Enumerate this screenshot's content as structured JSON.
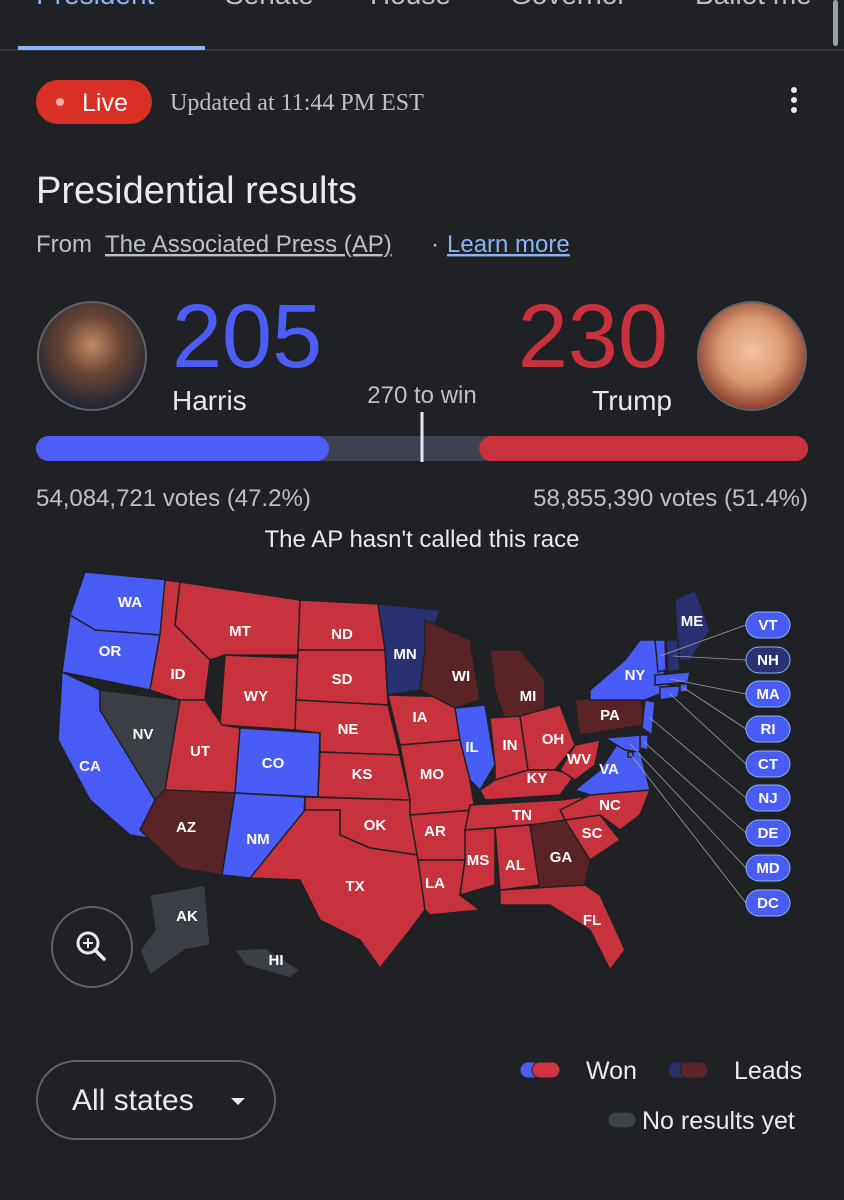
{
  "tabs": [
    "President",
    "Senate",
    "House",
    "Governor",
    "Ballot me"
  ],
  "status": {
    "live": "Live",
    "updated": "Updated at 11:44 PM EST"
  },
  "title": "Presidential results",
  "source": {
    "prefix": "From",
    "name": "The Associated Press (AP)",
    "separator": "·",
    "link": "Learn more"
  },
  "candidates": [
    {
      "name": "Harris",
      "electoral_votes": 205,
      "votes": "54,084,721 votes (47.2%)",
      "color": "#4c5ef7"
    },
    {
      "name": "Trump",
      "electoral_votes": 230,
      "votes": "58,855,390 votes (51.4%)",
      "color": "#c9323d"
    }
  ],
  "win_threshold": 270,
  "win_label": "270 to win",
  "race_status": "The AP hasn't called this race",
  "map": {
    "states": [
      {
        "label": "WA",
        "color": "#4a5cf6"
      },
      {
        "label": "OR",
        "color": "#4a5cf6"
      },
      {
        "label": "CA",
        "color": "#4a5cf6"
      },
      {
        "label": "NV",
        "color": "#3b3f45"
      },
      {
        "label": "ID",
        "color": "#c8323c"
      },
      {
        "label": "MT",
        "color": "#c8323c"
      },
      {
        "label": "WY",
        "color": "#c8323c"
      },
      {
        "label": "UT",
        "color": "#c8323c"
      },
      {
        "label": "CO",
        "color": "#4a5cf6"
      },
      {
        "label": "AZ",
        "color": "#5a2427"
      },
      {
        "label": "NM",
        "color": "#4a5cf6"
      },
      {
        "label": "ND",
        "color": "#c8323c"
      },
      {
        "label": "SD",
        "color": "#c8323c"
      },
      {
        "label": "NE",
        "color": "#c8323c"
      },
      {
        "label": "KS",
        "color": "#c8323c"
      },
      {
        "label": "OK",
        "color": "#c8323c"
      },
      {
        "label": "TX",
        "color": "#c8323c"
      },
      {
        "label": "MN",
        "color": "#2a3172"
      },
      {
        "label": "IA",
        "color": "#c8323c"
      },
      {
        "label": "MO",
        "color": "#c8323c"
      },
      {
        "label": "AR",
        "color": "#c8323c"
      },
      {
        "label": "LA",
        "color": "#c8323c"
      },
      {
        "label": "WI",
        "color": "#5a2427"
      },
      {
        "label": "IL",
        "color": "#4a5cf6"
      },
      {
        "label": "MI",
        "color": "#5a2427"
      },
      {
        "label": "IN",
        "color": "#c8323c"
      },
      {
        "label": "OH",
        "color": "#c8323c"
      },
      {
        "label": "KY",
        "color": "#c8323c"
      },
      {
        "label": "TN",
        "color": "#c8323c"
      },
      {
        "label": "MS",
        "color": "#c8323c"
      },
      {
        "label": "AL",
        "color": "#c8323c"
      },
      {
        "label": "GA",
        "color": "#5a2427"
      },
      {
        "label": "FL",
        "color": "#c8323c"
      },
      {
        "label": "SC",
        "color": "#c8323c"
      },
      {
        "label": "NC",
        "color": "#c8323c"
      },
      {
        "label": "VA",
        "color": "#4a5cf6"
      },
      {
        "label": "WV",
        "color": "#c8323c"
      },
      {
        "label": "PA",
        "color": "#5a2427"
      },
      {
        "label": "NY",
        "color": "#4a5cf6"
      },
      {
        "label": "ME",
        "color": "#2a3172"
      },
      {
        "label": "VT",
        "color": "#4a5cf6"
      },
      {
        "label": "NH",
        "color": "#2a3172"
      },
      {
        "label": "MA",
        "color": "#4a5cf6"
      },
      {
        "label": "RI",
        "color": "#4a5cf6"
      },
      {
        "label": "CT",
        "color": "#4a5cf6"
      },
      {
        "label": "NJ",
        "color": "#4a5cf6"
      },
      {
        "label": "DE",
        "color": "#4a5cf6"
      },
      {
        "label": "MD",
        "color": "#4a5cf6"
      },
      {
        "label": "DC",
        "color": "#4a5cf6"
      },
      {
        "label": "AK",
        "color": "#3b3f45"
      },
      {
        "label": "HI",
        "color": "#3b3f45"
      }
    ]
  },
  "legend": [
    {
      "label": "Won",
      "colors": [
        "#4c5ef7",
        "#d1343f"
      ]
    },
    {
      "label": "Leads",
      "colors": [
        "#283066",
        "#5c2528"
      ]
    },
    {
      "label": "No results yet",
      "colors": [
        "#3e4249"
      ]
    }
  ],
  "filter": "All states"
}
